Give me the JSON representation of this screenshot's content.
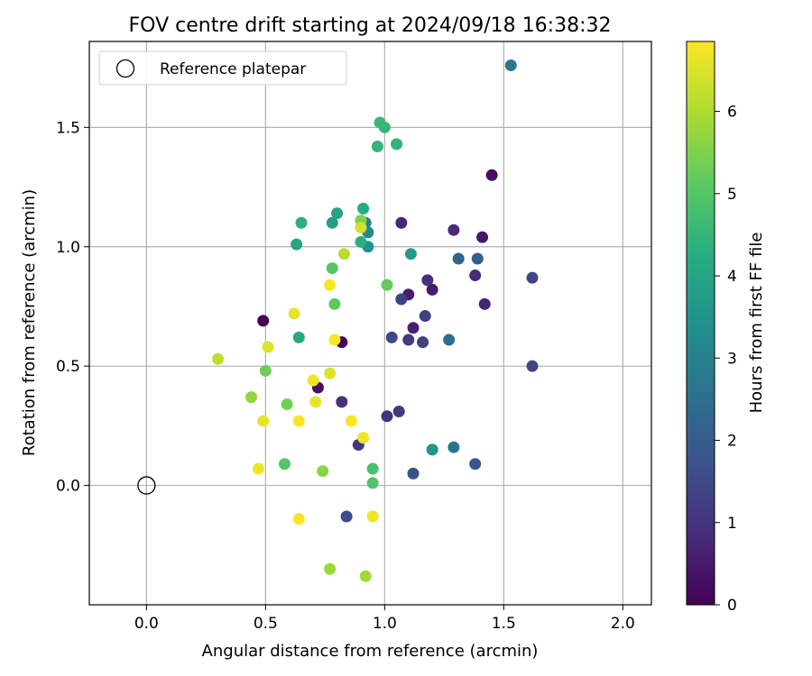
{
  "chart_data": {
    "type": "scatter",
    "title": "FOV centre drift starting at 2024/09/18 16:38:32",
    "xlabel": "Angular distance from reference (arcmin)",
    "ylabel": "Rotation from reference (arcmin)",
    "xlim": [
      -0.24,
      2.12
    ],
    "ylim": [
      -0.5,
      1.86
    ],
    "xticks": [
      0.0,
      0.5,
      1.0,
      1.5,
      2.0
    ],
    "xtick_labels": [
      "0.0",
      "0.5",
      "1.0",
      "1.5",
      "2.0"
    ],
    "yticks": [
      0.0,
      0.5,
      1.0,
      1.5
    ],
    "ytick_labels": [
      "0.0",
      "0.5",
      "1.0",
      "1.5"
    ],
    "grid": true,
    "legend": {
      "position": "top-left",
      "label": "Reference platepar"
    },
    "reference_point": {
      "x": 0.0,
      "y": 0.0
    },
    "colorbar": {
      "label": "Hours from first FF file",
      "range": [
        0,
        6.85
      ],
      "ticks": [
        0,
        1,
        2,
        3,
        4,
        5,
        6
      ],
      "tick_labels": [
        "0",
        "1",
        "2",
        "3",
        "4",
        "5",
        "6"
      ],
      "colormap": "viridis"
    },
    "points": [
      {
        "x": 0.49,
        "y": 0.69,
        "c": 0.05
      },
      {
        "x": 0.82,
        "y": 0.6,
        "c": 0.1
      },
      {
        "x": 0.72,
        "y": 0.41,
        "c": 0.3
      },
      {
        "x": 1.45,
        "y": 1.3,
        "c": 0.25
      },
      {
        "x": 1.41,
        "y": 1.04,
        "c": 0.45
      },
      {
        "x": 1.2,
        "y": 0.82,
        "c": 0.5
      },
      {
        "x": 1.1,
        "y": 0.8,
        "c": 0.55
      },
      {
        "x": 1.12,
        "y": 0.66,
        "c": 0.6
      },
      {
        "x": 1.42,
        "y": 0.76,
        "c": 0.7
      },
      {
        "x": 1.07,
        "y": 1.1,
        "c": 0.75
      },
      {
        "x": 1.29,
        "y": 1.07,
        "c": 0.8
      },
      {
        "x": 1.38,
        "y": 0.88,
        "c": 0.85
      },
      {
        "x": 1.18,
        "y": 0.86,
        "c": 0.9
      },
      {
        "x": 0.82,
        "y": 0.35,
        "c": 0.95
      },
      {
        "x": 1.01,
        "y": 0.29,
        "c": 1.0
      },
      {
        "x": 0.89,
        "y": 0.17,
        "c": 1.05
      },
      {
        "x": 1.06,
        "y": 0.31,
        "c": 1.1
      },
      {
        "x": 1.1,
        "y": 0.61,
        "c": 1.2
      },
      {
        "x": 1.17,
        "y": 0.71,
        "c": 1.25
      },
      {
        "x": 1.16,
        "y": 0.6,
        "c": 1.3
      },
      {
        "x": 1.07,
        "y": 0.78,
        "c": 1.35
      },
      {
        "x": 1.62,
        "y": 0.87,
        "c": 1.4
      },
      {
        "x": 1.62,
        "y": 0.5,
        "c": 1.45
      },
      {
        "x": 1.03,
        "y": 0.62,
        "c": 1.5
      },
      {
        "x": 0.84,
        "y": -0.13,
        "c": 1.55
      },
      {
        "x": 1.12,
        "y": 0.05,
        "c": 1.7
      },
      {
        "x": 1.38,
        "y": 0.09,
        "c": 1.8
      },
      {
        "x": 1.39,
        "y": 0.95,
        "c": 2.0
      },
      {
        "x": 1.31,
        "y": 0.95,
        "c": 2.2
      },
      {
        "x": 1.27,
        "y": 0.61,
        "c": 2.5
      },
      {
        "x": 1.29,
        "y": 0.16,
        "c": 2.6
      },
      {
        "x": 1.53,
        "y": 1.76,
        "c": 2.7
      },
      {
        "x": 0.92,
        "y": 1.1,
        "c": 3.0
      },
      {
        "x": 0.93,
        "y": 1.06,
        "c": 3.2
      },
      {
        "x": 0.93,
        "y": 1.0,
        "c": 3.4
      },
      {
        "x": 1.2,
        "y": 0.15,
        "c": 3.6
      },
      {
        "x": 1.11,
        "y": 0.97,
        "c": 3.7
      },
      {
        "x": 0.78,
        "y": 1.1,
        "c": 3.8
      },
      {
        "x": 0.8,
        "y": 1.14,
        "c": 3.9
      },
      {
        "x": 0.63,
        "y": 1.01,
        "c": 4.0
      },
      {
        "x": 0.64,
        "y": 0.62,
        "c": 4.1
      },
      {
        "x": 0.91,
        "y": 1.16,
        "c": 4.2
      },
      {
        "x": 0.9,
        "y": 1.02,
        "c": 4.3
      },
      {
        "x": 0.65,
        "y": 1.1,
        "c": 4.35
      },
      {
        "x": 1.05,
        "y": 1.43,
        "c": 4.4
      },
      {
        "x": 0.97,
        "y": 1.42,
        "c": 4.45
      },
      {
        "x": 1.0,
        "y": 1.5,
        "c": 4.5
      },
      {
        "x": 0.98,
        "y": 1.52,
        "c": 4.6
      },
      {
        "x": 0.95,
        "y": 0.07,
        "c": 4.8
      },
      {
        "x": 0.95,
        "y": 0.01,
        "c": 4.9
      },
      {
        "x": 0.58,
        "y": 0.09,
        "c": 5.0
      },
      {
        "x": 0.78,
        "y": 0.91,
        "c": 5.0
      },
      {
        "x": 0.79,
        "y": 0.76,
        "c": 5.1
      },
      {
        "x": 1.01,
        "y": 0.84,
        "c": 5.2
      },
      {
        "x": 0.5,
        "y": 0.48,
        "c": 5.3
      },
      {
        "x": 0.59,
        "y": 0.34,
        "c": 5.4
      },
      {
        "x": 0.9,
        "y": 1.11,
        "c": 5.5
      },
      {
        "x": 0.74,
        "y": 0.06,
        "c": 5.6
      },
      {
        "x": 0.44,
        "y": 0.37,
        "c": 5.7
      },
      {
        "x": 0.77,
        "y": -0.35,
        "c": 5.8
      },
      {
        "x": 0.92,
        "y": -0.38,
        "c": 5.9
      },
      {
        "x": 0.83,
        "y": 0.97,
        "c": 6.1
      },
      {
        "x": 0.9,
        "y": 1.08,
        "c": 6.4
      },
      {
        "x": 0.3,
        "y": 0.53,
        "c": 6.2
      },
      {
        "x": 0.51,
        "y": 0.58,
        "c": 6.5
      },
      {
        "x": 0.62,
        "y": 0.72,
        "c": 6.6
      },
      {
        "x": 0.49,
        "y": 0.27,
        "c": 6.6
      },
      {
        "x": 0.47,
        "y": 0.07,
        "c": 6.7
      },
      {
        "x": 0.64,
        "y": 0.27,
        "c": 6.8
      },
      {
        "x": 0.64,
        "y": -0.14,
        "c": 6.8
      },
      {
        "x": 0.7,
        "y": 0.44,
        "c": 6.7
      },
      {
        "x": 0.71,
        "y": 0.35,
        "c": 6.6
      },
      {
        "x": 0.77,
        "y": 0.47,
        "c": 6.5
      },
      {
        "x": 0.77,
        "y": 0.84,
        "c": 6.8
      },
      {
        "x": 0.79,
        "y": 0.61,
        "c": 6.8
      },
      {
        "x": 0.86,
        "y": 0.27,
        "c": 6.8
      },
      {
        "x": 0.91,
        "y": 0.2,
        "c": 6.7
      },
      {
        "x": 0.95,
        "y": -0.13,
        "c": 6.7
      }
    ]
  }
}
